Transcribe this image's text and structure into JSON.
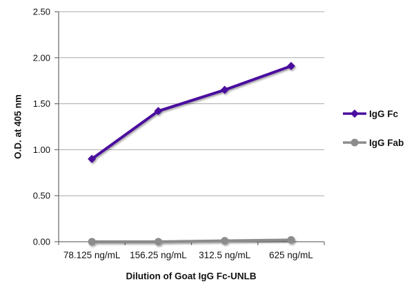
{
  "chart_data": {
    "type": "line",
    "title": "",
    "xlabel": "Dilution of Goat IgG Fc-UNLB",
    "ylabel": "O.D. at 405 nm",
    "categories": [
      "78.125 ng/mL",
      "156.25 ng/mL",
      "312.5 ng/mL",
      "625 ng/mL"
    ],
    "series": [
      {
        "name": "IgG Fc",
        "values": [
          0.9,
          1.42,
          1.65,
          1.91
        ],
        "color": "#4a0d9e",
        "marker": "diamond"
      },
      {
        "name": "IgG Fab",
        "values": [
          0.0,
          0.0,
          0.01,
          0.02
        ],
        "color": "#8c8c8c",
        "marker": "circle"
      }
    ],
    "ylim": [
      0,
      2.5
    ],
    "ytick_step": 0.5,
    "ytick_labels": [
      "0.00",
      "0.50",
      "1.00",
      "1.50",
      "2.00",
      "2.50"
    ],
    "grid": true,
    "legend_position": "right",
    "grid_color": "#a8a8a8",
    "axis_color": "#6f6f6f",
    "text_color": "#111111"
  }
}
